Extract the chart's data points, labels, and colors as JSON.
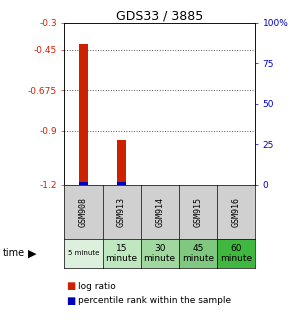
{
  "title": "GDS33 / 3885",
  "samples": [
    "GSM908",
    "GSM913",
    "GSM914",
    "GSM915",
    "GSM916"
  ],
  "time_labels_row1": [
    "5 minute",
    "15",
    "30",
    "45",
    "60"
  ],
  "time_labels_row2": [
    "",
    "minute",
    "minute",
    "minute",
    "minute"
  ],
  "time_colors": [
    "#ddf0dd",
    "#c0e8c0",
    "#a0d8a0",
    "#80c880",
    "#40b840"
  ],
  "bar_top_red": [
    -0.415,
    -0.95,
    null,
    null,
    null
  ],
  "bar_bottom": -1.2,
  "percentile_ranks_pct": [
    2.0,
    1.5,
    null,
    null,
    null
  ],
  "ylim_left": [
    -1.2,
    -0.3
  ],
  "ylim_right": [
    0,
    100
  ],
  "yticks_left": [
    -1.2,
    -0.9,
    -0.675,
    -0.45,
    -0.3
  ],
  "yticks_right": [
    0,
    25,
    50,
    75,
    100
  ],
  "left_color": "#cc2200",
  "right_color": "#0000cc",
  "grid_color": "#555555",
  "bar_color_red": "#cc2200",
  "bar_color_blue": "#0000bb",
  "bar_width": 0.25
}
